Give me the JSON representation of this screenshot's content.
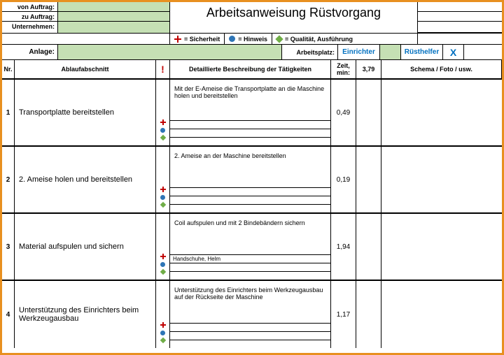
{
  "header": {
    "von_auftrag_label": "von Auftrag:",
    "zu_auftrag_label": "zu Auftrag:",
    "unternehmen_label": "Unternehmen:",
    "title": "Arbeitsanweisung Rüstvorgang"
  },
  "legend": {
    "sicherheit": "= Sicherheit",
    "hinweis": "= Hinweis",
    "qualitaet": "= Qualität, Ausführung"
  },
  "anlage": {
    "anlage_label": "Anlage:",
    "arbeitsplatz_label": "Arbeitsplatz:",
    "einrichter": "Einrichter",
    "ruesthelfer": "Rüsthelfer",
    "x_mark": "X"
  },
  "columns": {
    "nr": "Nr.",
    "ablauf": "Ablaufabschnitt",
    "excl": "!",
    "desc": "Detaillierte Beschreibung der Tätigkeiten",
    "zeit": "Zeit, min:",
    "zeit_total": "3,79",
    "schema": "Schema / Foto / usw."
  },
  "rows": [
    {
      "nr": "1",
      "ablauf": "Transportplatte bereitstellen",
      "desc": "Mit der E-Ameise die Transportplatte an die Maschine holen und bereitstellen",
      "line1": "",
      "zeit": "0,49"
    },
    {
      "nr": "2",
      "ablauf": "2. Ameise holen und bereitstellen",
      "desc": "2. Ameise an der Maschine bereitstellen",
      "line1": "",
      "zeit": "0,19"
    },
    {
      "nr": "3",
      "ablauf": "Material aufspulen und sichern",
      "desc": "Coil aufspulen und mit 2 Bindebändern sichern",
      "line1": "Handschuhe, Helm",
      "zeit": "1,94"
    },
    {
      "nr": "4",
      "ablauf": "Unterstützung des Einrichters beim Werkzeugausbau",
      "desc": "Unterstützung des Einrichters beim Werkzeugausbau auf der Rückseite der Maschine",
      "line1": "",
      "zeit": "1,17"
    }
  ],
  "colors": {
    "border": "#e89020",
    "green_bg": "#c5e0b4",
    "blue_text": "#0070c0",
    "red": "#c00000",
    "blue_circle": "#2e75b6",
    "green_diamond": "#70ad47"
  }
}
